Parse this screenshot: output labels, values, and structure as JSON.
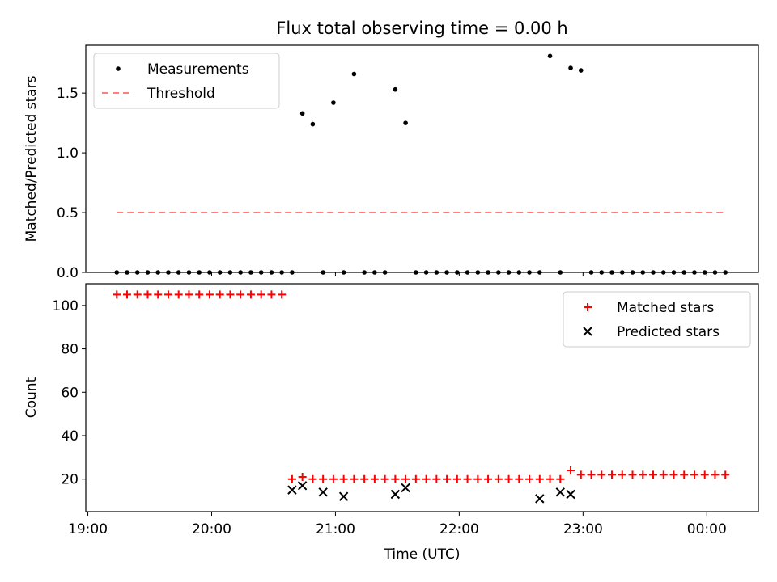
{
  "chart_data": [
    {
      "type": "scatter",
      "title": "Flux total observing time = 0.00 h",
      "xlabel": "",
      "ylabel": "Matched/Predicted stars",
      "xlim": [
        "18:59",
        "00:25"
      ],
      "ylim": [
        0,
        1.9
      ],
      "yticks": [
        0,
        0.5,
        1.0,
        1.5
      ],
      "ytick_labels": [
        "0.0",
        "0.5",
        "1.0",
        "1.5"
      ],
      "xticks": [
        "20:00",
        "21:00",
        "22:00",
        "23:00",
        "00:00"
      ],
      "legend": {
        "placement": "top-left",
        "entries": [
          "Measurements",
          "Threshold"
        ]
      },
      "series": [
        {
          "name": "Measurements",
          "style": "dot",
          "color": "#000000",
          "x": [
            "19:14",
            "19:19",
            "19:24",
            "19:29",
            "19:34",
            "19:39",
            "19:44",
            "19:49",
            "19:54",
            "19:59",
            "20:04",
            "20:09",
            "20:14",
            "20:19",
            "20:24",
            "20:29",
            "20:34",
            "20:39",
            "20:44",
            "20:49",
            "20:54",
            "20:59",
            "21:04",
            "21:09",
            "21:14",
            "21:19",
            "21:24",
            "21:29",
            "21:34",
            "21:39",
            "21:44",
            "21:49",
            "21:54",
            "21:59",
            "22:04",
            "22:09",
            "22:14",
            "22:19",
            "22:24",
            "22:29",
            "22:34",
            "22:39",
            "22:44",
            "22:49",
            "22:54",
            "22:59",
            "23:04",
            "23:09",
            "23:14",
            "23:19",
            "23:24",
            "23:29",
            "23:34",
            "23:39",
            "23:44",
            "23:49",
            "23:54",
            "23:59",
            "00:04",
            "00:09"
          ],
          "y": [
            0,
            0,
            0,
            0,
            0,
            0,
            0,
            0,
            0,
            0,
            0,
            0,
            0,
            0,
            0,
            0,
            0,
            0,
            1.33,
            1.24,
            0,
            1.42,
            0,
            1.66,
            0,
            0,
            0,
            1.53,
            1.25,
            0,
            0,
            0,
            0,
            0,
            0,
            0,
            0,
            0,
            0,
            0,
            0,
            0,
            1.81,
            0,
            1.71,
            1.69,
            0,
            0,
            0,
            0,
            0,
            0,
            0,
            0,
            0,
            0,
            0,
            0,
            0,
            0
          ]
        },
        {
          "name": "Threshold",
          "style": "dashed-line",
          "color": "#ff7f7f",
          "x": [
            "19:14",
            "00:09"
          ],
          "y": [
            0.5,
            0.5
          ]
        }
      ]
    },
    {
      "type": "scatter",
      "title": "",
      "xlabel": "Time (UTC)",
      "ylabel": "Count",
      "xlim": [
        "18:59",
        "00:25"
      ],
      "ylim": [
        5,
        110
      ],
      "yticks": [
        20,
        40,
        60,
        80,
        100
      ],
      "ytick_labels": [
        "20",
        "40",
        "60",
        "80",
        "100"
      ],
      "xticks": [
        "19:00",
        "20:00",
        "21:00",
        "22:00",
        "23:00",
        "00:00"
      ],
      "legend": {
        "placement": "top-right",
        "entries": [
          "Matched stars",
          "Predicted stars"
        ]
      },
      "series": [
        {
          "name": "Matched stars",
          "style": "plus",
          "color": "#ff0000",
          "x": [
            "19:14",
            "19:19",
            "19:24",
            "19:29",
            "19:34",
            "19:39",
            "19:44",
            "19:49",
            "19:54",
            "19:59",
            "20:04",
            "20:09",
            "20:14",
            "20:19",
            "20:24",
            "20:29",
            "20:34",
            "20:39",
            "20:44",
            "20:49",
            "20:54",
            "20:59",
            "21:04",
            "21:09",
            "21:14",
            "21:19",
            "21:24",
            "21:29",
            "21:34",
            "21:39",
            "21:44",
            "21:49",
            "21:54",
            "21:59",
            "22:04",
            "22:09",
            "22:14",
            "22:19",
            "22:24",
            "22:29",
            "22:34",
            "22:39",
            "22:44",
            "22:49",
            "22:54",
            "22:59",
            "23:04",
            "23:09",
            "23:14",
            "23:19",
            "23:24",
            "23:29",
            "23:34",
            "23:39",
            "23:44",
            "23:49",
            "23:54",
            "23:59",
            "00:04",
            "00:09"
          ],
          "y": [
            105,
            105,
            105,
            105,
            105,
            105,
            105,
            105,
            105,
            105,
            105,
            105,
            105,
            105,
            105,
            105,
            105,
            20,
            21,
            20,
            20,
            20,
            20,
            20,
            20,
            20,
            20,
            20,
            20,
            20,
            20,
            20,
            20,
            20,
            20,
            20,
            20,
            20,
            20,
            20,
            20,
            20,
            20,
            20,
            24,
            22,
            22,
            22,
            22,
            22,
            22,
            22,
            22,
            22,
            22,
            22,
            22,
            22,
            22,
            22
          ]
        },
        {
          "name": "Predicted stars",
          "style": "x",
          "color": "#000000",
          "x": [
            "20:39",
            "20:44",
            "20:54",
            "21:04",
            "21:29",
            "21:34",
            "22:39",
            "22:49",
            "22:54"
          ],
          "y": [
            15,
            17,
            14,
            12,
            13,
            16,
            11,
            14,
            13
          ]
        }
      ]
    }
  ]
}
